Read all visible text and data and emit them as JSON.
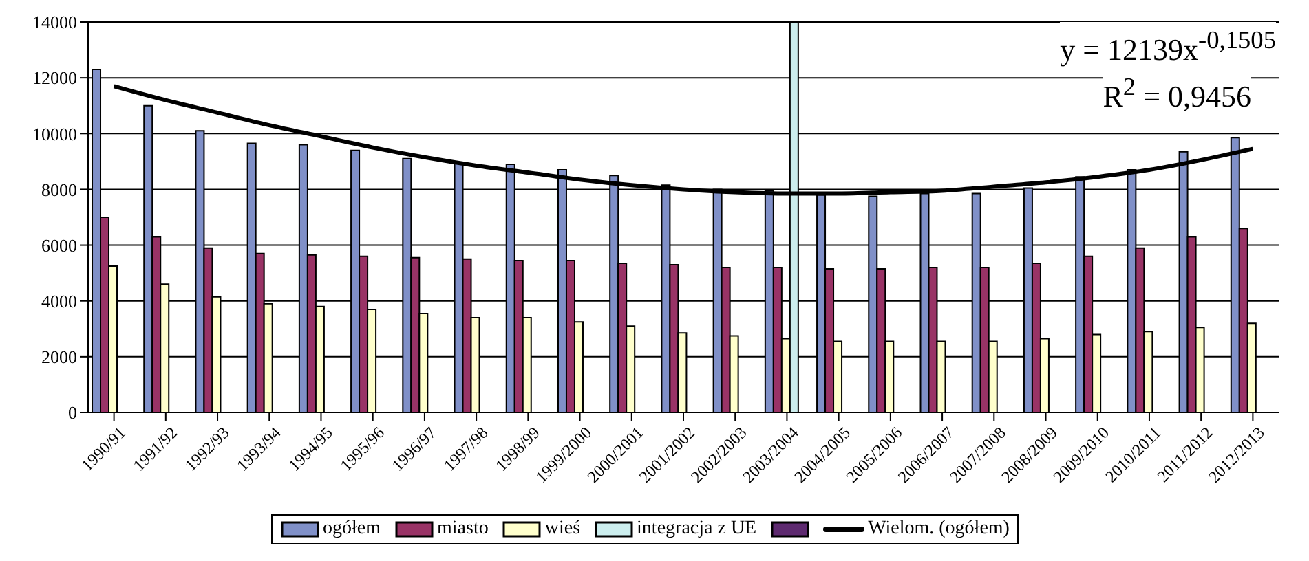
{
  "chart_data": {
    "type": "bar",
    "categories": [
      "1990/91",
      "1991/92",
      "1992/93",
      "1993/94",
      "1994/95",
      "1995/96",
      "1996/97",
      "1997/98",
      "1998/99",
      "1999/2000",
      "2000/2001",
      "2001/2002",
      "2002/2003",
      "2003/2004",
      "2004/2005",
      "2005/2006",
      "2006/2007",
      "2007/2008",
      "2008/2009",
      "2009/2010",
      "2010/2011",
      "2011/2012",
      "2012/2013"
    ],
    "series": [
      {
        "name": "ogółem",
        "color": "#8090c8",
        "values": [
          12300,
          11000,
          10100,
          9650,
          9600,
          9400,
          9100,
          8950,
          8900,
          8700,
          8500,
          8150,
          8000,
          7950,
          7800,
          7750,
          7850,
          7850,
          8050,
          8450,
          8700,
          9350,
          9850
        ]
      },
      {
        "name": "miasto",
        "color": "#993366",
        "values": [
          7000,
          6300,
          5900,
          5700,
          5650,
          5600,
          5550,
          5500,
          5450,
          5450,
          5350,
          5300,
          5200,
          5200,
          5150,
          5150,
          5200,
          5200,
          5350,
          5600,
          5900,
          6300,
          6600
        ]
      },
      {
        "name": "wieś",
        "color": "#ffffcc",
        "values": [
          5250,
          4600,
          4150,
          3900,
          3800,
          3700,
          3550,
          3400,
          3400,
          3250,
          3100,
          2850,
          2750,
          2650,
          2550,
          2550,
          2550,
          2550,
          2650,
          2800,
          2900,
          3050,
          3200
        ]
      },
      {
        "name": "integracja z UE",
        "color": "#cceeee",
        "values": [
          null,
          null,
          null,
          null,
          null,
          null,
          null,
          null,
          null,
          null,
          null,
          null,
          null,
          14000,
          null,
          null,
          null,
          null,
          null,
          null,
          null,
          null,
          null
        ]
      },
      {
        "color": "#5e2a70",
        "values": [
          null,
          null,
          null,
          null,
          null,
          null,
          null,
          null,
          null,
          null,
          null,
          null,
          null,
          null,
          null,
          null,
          null,
          null,
          null,
          null,
          null,
          null,
          null
        ]
      },
      {
        "name": "Wielom. (ogółem)",
        "type": "line",
        "color": "#000000",
        "values": [
          11700,
          11200,
          10750,
          10300,
          9900,
          9500,
          9150,
          8850,
          8600,
          8350,
          8150,
          8000,
          7900,
          7850,
          7850,
          7900,
          7950,
          8100,
          8250,
          8450,
          8700,
          9050,
          9450
        ]
      }
    ],
    "ylim": [
      0,
      14000
    ],
    "yticks": [
      0,
      2000,
      4000,
      6000,
      8000,
      10000,
      12000,
      14000
    ],
    "grid": "y",
    "legend": "bottom",
    "marker": "none",
    "annotations": [
      "y = 12139x$^{-0,1505}$",
      "R$^{2}$ = 0,9456"
    ]
  }
}
